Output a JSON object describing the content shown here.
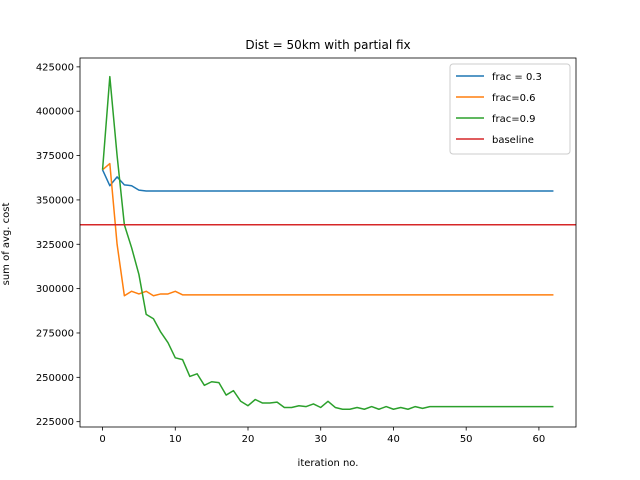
{
  "chart_data": {
    "type": "line",
    "title": "Dist = 50km with partial fix",
    "xlabel": "iteration no.",
    "ylabel": "sum of avg. cost",
    "xlim": [
      -3.1,
      65.1
    ],
    "ylim": [
      222000,
      430000
    ],
    "xticks": [
      0,
      10,
      20,
      30,
      40,
      50,
      60
    ],
    "yticks": [
      225000,
      250000,
      275000,
      300000,
      325000,
      350000,
      375000,
      400000,
      425000
    ],
    "grid": false,
    "legend_position": "top-right",
    "series": [
      {
        "name": "frac = 0.3",
        "color": "#1f77b4",
        "x": [
          0,
          1,
          2,
          3,
          4,
          5,
          6,
          7,
          8,
          9,
          10,
          11,
          12,
          13,
          14,
          15,
          16,
          17,
          18,
          19,
          20,
          21,
          22,
          23,
          24,
          25,
          26,
          27,
          28,
          29,
          30,
          31,
          32,
          33,
          34,
          35,
          36,
          37,
          38,
          39,
          40,
          41,
          42,
          43,
          44,
          45,
          46,
          47,
          48,
          49,
          50,
          51,
          52,
          53,
          54,
          55,
          56,
          57,
          58,
          59,
          60,
          61,
          62
        ],
        "y": [
          367000,
          358000,
          363000,
          358500,
          358000,
          355500,
          355000,
          355000,
          355000,
          355000,
          355000,
          355000,
          355000,
          355000,
          355000,
          355000,
          355000,
          355000,
          355000,
          355000,
          355000,
          355000,
          355000,
          355000,
          355000,
          355000,
          355000,
          355000,
          355000,
          355000,
          355000,
          355000,
          355000,
          355000,
          355000,
          355000,
          355000,
          355000,
          355000,
          355000,
          355000,
          355000,
          355000,
          355000,
          355000,
          355000,
          355000,
          355000,
          355000,
          355000,
          355000,
          355000,
          355000,
          355000,
          355000,
          355000,
          355000,
          355000,
          355000,
          355000,
          355000,
          355000,
          355000
        ]
      },
      {
        "name": "frac=0.6",
        "color": "#ff7f0e",
        "x": [
          0,
          1,
          2,
          3,
          4,
          5,
          6,
          7,
          8,
          9,
          10,
          11,
          12,
          13,
          14,
          15,
          16,
          17,
          18,
          19,
          20,
          21,
          22,
          23,
          24,
          25,
          26,
          27,
          28,
          29,
          30,
          31,
          32,
          33,
          34,
          35,
          36,
          37,
          38,
          39,
          40,
          41,
          42,
          43,
          44,
          45,
          46,
          47,
          48,
          49,
          50,
          51,
          52,
          53,
          54,
          55,
          56,
          57,
          58,
          59,
          60,
          61,
          62
        ],
        "y": [
          367000,
          370500,
          325000,
          296000,
          298500,
          297000,
          298500,
          296000,
          297000,
          297000,
          298500,
          296500,
          296500,
          296500,
          296500,
          296500,
          296500,
          296500,
          296500,
          296500,
          296500,
          296500,
          296500,
          296500,
          296500,
          296500,
          296500,
          296500,
          296500,
          296500,
          296500,
          296500,
          296500,
          296500,
          296500,
          296500,
          296500,
          296500,
          296500,
          296500,
          296500,
          296500,
          296500,
          296500,
          296500,
          296500,
          296500,
          296500,
          296500,
          296500,
          296500,
          296500,
          296500,
          296500,
          296500,
          296500,
          296500,
          296500,
          296500,
          296500,
          296500,
          296500,
          296500
        ]
      },
      {
        "name": "frac=0.9",
        "color": "#2ca02c",
        "x": [
          0,
          1,
          2,
          3,
          4,
          5,
          6,
          7,
          8,
          9,
          10,
          11,
          12,
          13,
          14,
          15,
          16,
          17,
          18,
          19,
          20,
          21,
          22,
          23,
          24,
          25,
          26,
          27,
          28,
          29,
          30,
          31,
          32,
          33,
          34,
          35,
          36,
          37,
          38,
          39,
          40,
          41,
          42,
          43,
          44,
          45,
          46,
          47,
          48,
          49,
          50,
          51,
          52,
          53,
          54,
          55,
          56,
          57,
          58,
          59,
          60,
          61,
          62
        ],
        "y": [
          367000,
          419500,
          375000,
          336000,
          323000,
          308000,
          285500,
          283000,
          275500,
          269500,
          261000,
          260000,
          250500,
          252000,
          245500,
          247500,
          247000,
          240000,
          242500,
          236500,
          234000,
          237500,
          235500,
          235500,
          236000,
          233000,
          233000,
          234000,
          233500,
          235000,
          233000,
          236500,
          233000,
          232000,
          232000,
          233000,
          232000,
          233500,
          232000,
          233500,
          232000,
          233000,
          232000,
          233500,
          232500,
          233500,
          233500,
          233500,
          233500,
          233500,
          233500,
          233500,
          233500,
          233500,
          233500,
          233500,
          233500,
          233500,
          233500,
          233500,
          233500,
          233500,
          233500
        ]
      },
      {
        "name": "baseline",
        "color": "#d62728",
        "type": "hline",
        "y": 336000
      }
    ]
  }
}
